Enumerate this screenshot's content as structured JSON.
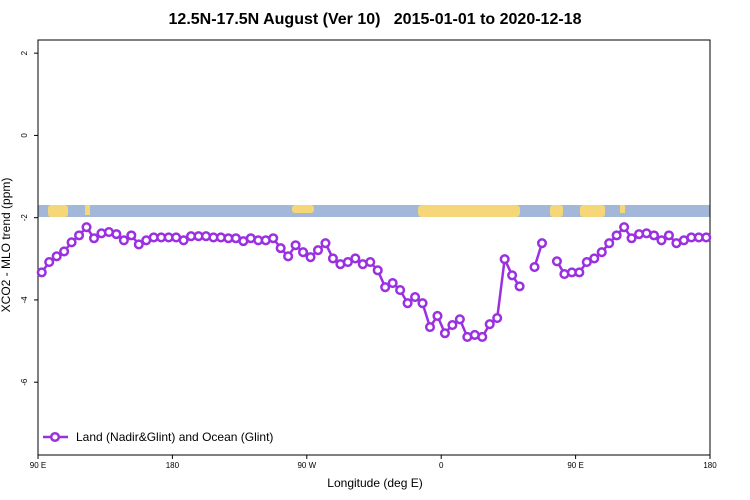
{
  "chart_data": {
    "type": "line",
    "title": "12.5N-17.5N August (Ver 10)   2015-01-01 to 2020-12-18",
    "x_label": "Longitude (deg E)",
    "y_label": "XCO2 - MLO trend (ppm)",
    "x": [
      92.5,
      97.5,
      102.5,
      107.5,
      112.5,
      117.5,
      122.5,
      127.5,
      132.5,
      137.5,
      142.5,
      147.5,
      152.5,
      157.5,
      162.5,
      167.5,
      172.5,
      177.5,
      182.5,
      187.5,
      192.5,
      197.5,
      202.5,
      207.5,
      212.5,
      217.5,
      222.5,
      227.5,
      232.5,
      237.5,
      242.5,
      247.5,
      252.5,
      257.5,
      262.5,
      267.5,
      272.5,
      277.5,
      282.5,
      287.5,
      292.5,
      297.5,
      302.5,
      307.5,
      312.5,
      317.5,
      322.5,
      327.5,
      332.5,
      337.5,
      342.5,
      347.5,
      352.5,
      357.5,
      362.5,
      367.5,
      372.5,
      377.5,
      382.5,
      387.5,
      392.5,
      397.5,
      402.5,
      407.5,
      412.5,
      417.5,
      422.5,
      427.5,
      432.5,
      437.5,
      442.5,
      447.5,
      452.5,
      457.5,
      462.5,
      467.5,
      472.5,
      477.5,
      482.5,
      487.5,
      492.5,
      497.5,
      502.5,
      507.5,
      512.5,
      517.5,
      522.5,
      527.5,
      532.5,
      537.5
    ],
    "series": [
      {
        "name": "Land (Nadir&Glint) and Ocean (Glint)",
        "color": "#9b30e0",
        "values": [
          -3.33,
          -3.08,
          -2.94,
          -2.82,
          -2.6,
          -2.43,
          -2.23,
          -2.5,
          -2.38,
          -2.35,
          -2.4,
          -2.55,
          -2.43,
          -2.65,
          -2.55,
          -2.48,
          -2.48,
          -2.48,
          -2.48,
          -2.55,
          -2.45,
          -2.45,
          -2.45,
          -2.48,
          -2.48,
          -2.5,
          -2.5,
          -2.57,
          -2.5,
          -2.55,
          -2.55,
          -2.5,
          -2.74,
          -2.94,
          -2.67,
          -2.84,
          -2.96,
          -2.79,
          -2.62,
          -2.99,
          -3.13,
          -3.08,
          -2.99,
          -3.13,
          -3.08,
          -3.28,
          -3.69,
          -3.59,
          -3.76,
          -4.08,
          -3.93,
          -4.08,
          -4.66,
          -4.39,
          -4.81,
          -4.61,
          -4.47,
          -4.9,
          -4.85,
          -4.9,
          -4.59,
          -4.44,
          -3.01,
          -3.4,
          -3.67,
          null,
          -3.2,
          -2.62,
          null,
          -3.06,
          -3.37,
          -3.33,
          -3.33,
          -3.08,
          -2.99,
          -2.84,
          -2.62,
          -2.43,
          -2.23,
          -2.5,
          -2.4,
          -2.38,
          -2.43,
          -2.55,
          -2.43,
          -2.62,
          -2.55,
          -2.48,
          -2.48,
          -2.48
        ]
      }
    ],
    "xlim": [
      90,
      540
    ],
    "xticks": [
      {
        "value": 90,
        "label": "90 E"
      },
      180,
      {
        "value": 270,
        "label": "90 W"
      },
      {
        "value": 360,
        "label": "0"
      },
      {
        "value": 450,
        "label": "90 E"
      },
      {
        "value": 540,
        "label": "180"
      }
    ],
    "ylim": [
      -7.77,
      2.32
    ],
    "yticks": [
      2,
      0,
      -2,
      -4,
      -6
    ],
    "legend": "bottom-left"
  }
}
